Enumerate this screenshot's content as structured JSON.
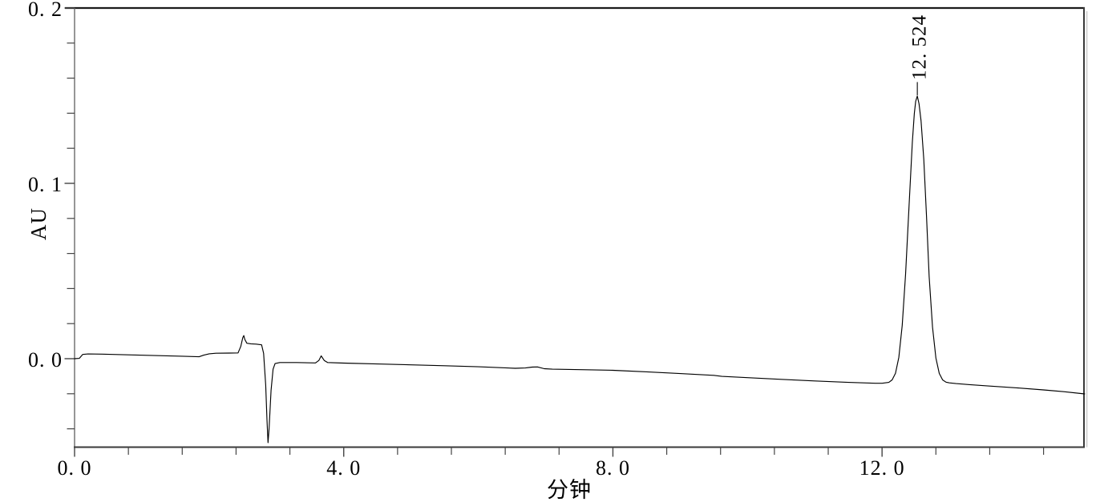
{
  "colors": {
    "background": "#ffffff",
    "trace": "#000000",
    "frame": "#3a3a3a",
    "frame_top": "#1c1c1c",
    "axis_line": "#6a6a6a",
    "tick": "#444444",
    "frame_shadow": "#d5d5d5",
    "text": "#000000"
  },
  "chart_data": {
    "type": "line",
    "title": "",
    "xlabel": "分钟",
    "ylabel": "AU",
    "grid": false,
    "legend_position": "none",
    "x_axis": {
      "unit": "min",
      "range": [
        0,
        15.01
      ],
      "major_ticks": [
        0.0,
        4.0,
        8.0,
        12.0
      ],
      "major_tick_labels": [
        "0. 0",
        "4. 0",
        "8. 0",
        "12. 0"
      ],
      "minor_tick_step": 0.8
    },
    "y_axis": {
      "unit": "AU",
      "range": [
        -0.0505,
        0.2
      ],
      "major_ticks": [
        0.0,
        0.1,
        0.2
      ],
      "major_tick_labels": [
        "0. 0",
        "0. 1",
        "0. 2"
      ],
      "minor_tick_step": 0.02
    },
    "peaks": [
      {
        "label": "12. 524",
        "retention_time_min": 12.524,
        "apex_au": 0.1498,
        "label_rotation_deg": -90
      }
    ],
    "trace_points_min_au": [
      [
        0.0,
        0.0
      ],
      [
        0.07,
        0.0002
      ],
      [
        0.12,
        0.0024
      ],
      [
        0.2,
        0.0027
      ],
      [
        0.4,
        0.0026
      ],
      [
        0.8,
        0.0022
      ],
      [
        1.2,
        0.0018
      ],
      [
        1.6,
        0.0014
      ],
      [
        1.85,
        0.0011
      ],
      [
        1.92,
        0.002
      ],
      [
        2.0,
        0.0028
      ],
      [
        2.1,
        0.0031
      ],
      [
        2.3,
        0.0032
      ],
      [
        2.43,
        0.0033
      ],
      [
        2.47,
        0.007
      ],
      [
        2.5,
        0.012
      ],
      [
        2.515,
        0.0132
      ],
      [
        2.53,
        0.011
      ],
      [
        2.56,
        0.0088
      ],
      [
        2.62,
        0.0085
      ],
      [
        2.7,
        0.0083
      ],
      [
        2.78,
        0.0079
      ],
      [
        2.81,
        0.003
      ],
      [
        2.84,
        -0.015
      ],
      [
        2.86,
        -0.035
      ],
      [
        2.875,
        -0.0479
      ],
      [
        2.89,
        -0.04
      ],
      [
        2.92,
        -0.018
      ],
      [
        2.95,
        -0.006
      ],
      [
        2.98,
        -0.0028
      ],
      [
        3.05,
        -0.0022
      ],
      [
        3.3,
        -0.0022
      ],
      [
        3.58,
        -0.0024
      ],
      [
        3.63,
        -0.001
      ],
      [
        3.665,
        0.0016
      ],
      [
        3.71,
        -0.001
      ],
      [
        3.76,
        -0.0022
      ],
      [
        4.0,
        -0.0025
      ],
      [
        4.5,
        -0.003
      ],
      [
        5.0,
        -0.0035
      ],
      [
        5.5,
        -0.004
      ],
      [
        6.0,
        -0.0046
      ],
      [
        6.55,
        -0.0055
      ],
      [
        6.7,
        -0.0053
      ],
      [
        6.8,
        -0.0048
      ],
      [
        6.88,
        -0.0047
      ],
      [
        6.98,
        -0.0057
      ],
      [
        7.1,
        -0.006
      ],
      [
        7.6,
        -0.0063
      ],
      [
        8.0,
        -0.0066
      ],
      [
        8.5,
        -0.0075
      ],
      [
        9.0,
        -0.0085
      ],
      [
        9.5,
        -0.0095
      ],
      [
        9.62,
        -0.0101
      ],
      [
        10.0,
        -0.0108
      ],
      [
        10.5,
        -0.0118
      ],
      [
        11.0,
        -0.0127
      ],
      [
        11.5,
        -0.0135
      ],
      [
        11.9,
        -0.014
      ],
      [
        12.0,
        -0.014
      ],
      [
        12.1,
        -0.0135
      ],
      [
        12.15,
        -0.0121
      ],
      [
        12.2,
        -0.0083
      ],
      [
        12.25,
        0.0008
      ],
      [
        12.3,
        0.019
      ],
      [
        12.35,
        0.0482
      ],
      [
        12.4,
        0.086
      ],
      [
        12.45,
        0.1233
      ],
      [
        12.48,
        0.1398
      ],
      [
        12.5,
        0.1468
      ],
      [
        12.524,
        0.1498
      ],
      [
        12.55,
        0.1453
      ],
      [
        12.58,
        0.1356
      ],
      [
        12.62,
        0.1138
      ],
      [
        12.66,
        0.0813
      ],
      [
        12.7,
        0.0468
      ],
      [
        12.75,
        0.018
      ],
      [
        12.8,
        0.0004
      ],
      [
        12.85,
        -0.0084
      ],
      [
        12.9,
        -0.0121
      ],
      [
        12.95,
        -0.0134
      ],
      [
        13.0,
        -0.0138
      ],
      [
        13.1,
        -0.0142
      ],
      [
        13.3,
        -0.0148
      ],
      [
        13.6,
        -0.0156
      ],
      [
        14.0,
        -0.0166
      ],
      [
        14.4,
        -0.0178
      ],
      [
        14.7,
        -0.0188
      ],
      [
        15.01,
        -0.0201
      ]
    ]
  }
}
